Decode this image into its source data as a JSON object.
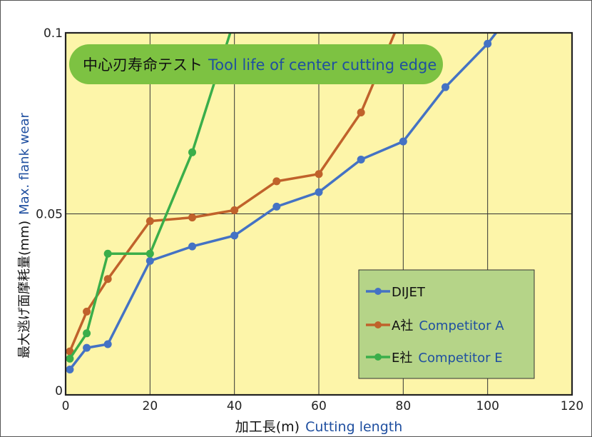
{
  "chart_data": {
    "type": "line",
    "title_jp": "中心刃寿命テスト",
    "title_en": "Tool life of center cutting edge",
    "xlabel_jp": "加工長(m)",
    "xlabel_en": "Cutting length",
    "ylabel_jp": "最大逃げ面摩耗量(mm)",
    "ylabel_en": "Max. flank wear",
    "xlim": [
      0,
      120
    ],
    "ylim": [
      0,
      0.1
    ],
    "x_ticks": [
      "0",
      "20",
      "40",
      "60",
      "80",
      "100",
      "120"
    ],
    "y_ticks": [
      "0",
      "0.05",
      "0.1"
    ],
    "x_tick_values": [
      0,
      20,
      40,
      60,
      80,
      100,
      120
    ],
    "y_tick_values": [
      0,
      0.05,
      0.1
    ],
    "grid": true,
    "legend_placement": "bottom-right",
    "series": [
      {
        "name": "DIJET",
        "name_en": "",
        "color": "#4472c4",
        "points": [
          [
            1,
            0.007
          ],
          [
            5,
            0.013
          ],
          [
            10,
            0.014
          ],
          [
            20,
            0.037
          ],
          [
            30,
            0.041
          ],
          [
            40,
            0.044
          ],
          [
            50,
            0.052
          ],
          [
            60,
            0.056
          ],
          [
            70,
            0.065
          ],
          [
            80,
            0.07
          ],
          [
            90,
            0.085
          ],
          [
            100,
            0.097
          ],
          [
            102,
            0.1
          ]
        ]
      },
      {
        "name": "A社",
        "name_en": "Competitor A",
        "color": "#c0622b",
        "points": [
          [
            1,
            0.012
          ],
          [
            5,
            0.023
          ],
          [
            10,
            0.032
          ],
          [
            20,
            0.048
          ],
          [
            30,
            0.049
          ],
          [
            40,
            0.051
          ],
          [
            50,
            0.059
          ],
          [
            60,
            0.061
          ],
          [
            70,
            0.078
          ],
          [
            78,
            0.1
          ]
        ]
      },
      {
        "name": "E社",
        "name_en": "Competitor E",
        "color": "#3aae4a",
        "points": [
          [
            1,
            0.01
          ],
          [
            5,
            0.017
          ],
          [
            10,
            0.039
          ],
          [
            20,
            0.039
          ],
          [
            30,
            0.067
          ],
          [
            39,
            0.1
          ]
        ]
      }
    ],
    "colors": {
      "plot_bg": "#fdf5a9",
      "legend_bg": "#b5d488",
      "title_bg": "#7dc242",
      "english_text": "#1f4fa0",
      "japanese_text": "#111111"
    }
  }
}
